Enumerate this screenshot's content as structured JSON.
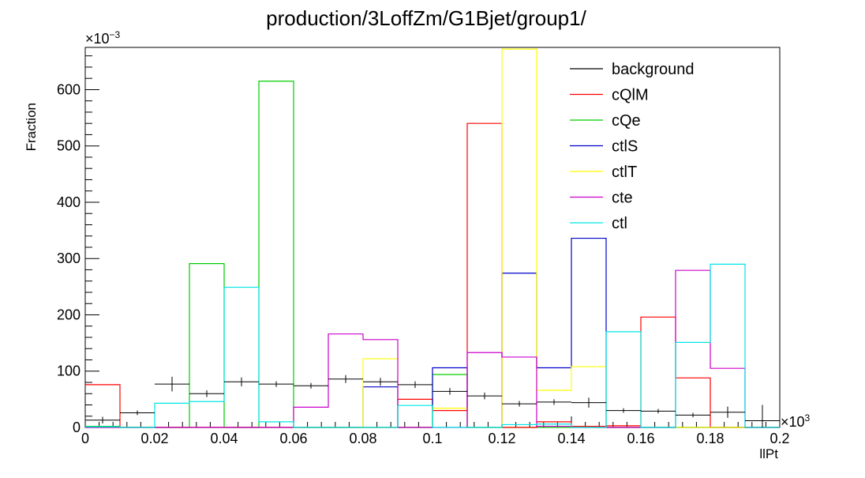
{
  "chart_data": {
    "type": "histogram",
    "title": "production/3LoffZm/G1Bjet/group1/",
    "xlabel": "llPt",
    "ylabel": "Fraction",
    "x_multiplier": "×10",
    "x_multiplier_exp": "3",
    "y_multiplier": "×10",
    "y_multiplier_exp": "−3",
    "xlim": [
      0,
      0.2
    ],
    "ylim": [
      0,
      0.675
    ],
    "x_tick_labels": [
      "0",
      "0.02",
      "0.04",
      "0.06",
      "0.08",
      "0.1",
      "0.12",
      "0.14",
      "0.16",
      "0.18",
      "0.2"
    ],
    "x_tick_values": [
      0,
      0.02,
      0.04,
      0.06,
      0.08,
      0.1,
      0.12,
      0.14,
      0.16,
      0.18,
      0.2
    ],
    "y_tick_labels": [
      "0",
      "100",
      "200",
      "300",
      "400",
      "500",
      "600"
    ],
    "y_tick_values": [
      0,
      0.1,
      0.2,
      0.3,
      0.4,
      0.5,
      0.6
    ],
    "bin_edges": [
      0,
      0.01,
      0.02,
      0.03,
      0.04,
      0.05,
      0.06,
      0.07,
      0.08,
      0.09,
      0.1,
      0.11,
      0.12,
      0.13,
      0.14,
      0.15,
      0.16,
      0.17,
      0.18,
      0.19,
      0.2
    ],
    "legend_position": "top-right",
    "series": [
      {
        "name": "background",
        "color": "#000000",
        "style": "errorbars",
        "values": [
          0.013,
          0.026,
          0.077,
          0.06,
          0.081,
          0.077,
          0.074,
          0.086,
          0.081,
          0.076,
          0.064,
          0.056,
          0.042,
          0.045,
          0.044,
          0.03,
          0.029,
          0.022,
          0.027,
          0.012
        ],
        "errors": [
          0.006,
          0.004,
          0.013,
          0.006,
          0.008,
          0.005,
          0.005,
          0.007,
          0.007,
          0.006,
          0.006,
          0.006,
          0.005,
          0.005,
          0.009,
          0.004,
          0.004,
          0.004,
          0.01,
          0.028
        ]
      },
      {
        "name": "cQlM",
        "color": "#ff0000",
        "style": "step",
        "values": [
          0.076,
          0,
          0,
          0,
          0,
          0,
          0,
          0,
          0,
          0.05,
          0.03,
          0.54,
          0,
          0.01,
          0.002,
          0.003,
          0.196,
          0.088,
          0,
          0
        ]
      },
      {
        "name": "cQe",
        "color": "#00cc00",
        "style": "step",
        "values": [
          0.002,
          0,
          0,
          0.291,
          0,
          0.615,
          0,
          0,
          0,
          0,
          0.094,
          0,
          0,
          0,
          0,
          0,
          0,
          0,
          0,
          0
        ]
      },
      {
        "name": "ctlS",
        "color": "#0000cc",
        "style": "step",
        "values": [
          0,
          0,
          0,
          0,
          0,
          0,
          0,
          0,
          0.072,
          0,
          0.106,
          0,
          0.274,
          0.106,
          0.336,
          0,
          0,
          0,
          0,
          0
        ]
      },
      {
        "name": "ctlT",
        "color": "#ffff00",
        "style": "step",
        "values": [
          0,
          0,
          0,
          0,
          0,
          0,
          0,
          0,
          0.122,
          0,
          0.034,
          0,
          0.672,
          0.066,
          0.108,
          0,
          0,
          0,
          0,
          0
        ]
      },
      {
        "name": "cte",
        "color": "#cc00cc",
        "style": "step",
        "values": [
          0,
          0,
          0,
          0,
          0,
          0,
          0.036,
          0.166,
          0.156,
          0,
          0,
          0.133,
          0.125,
          0.002,
          0,
          0,
          0,
          0.279,
          0.105,
          0
        ]
      },
      {
        "name": "ctl",
        "color": "#00e5e5",
        "style": "step",
        "values": [
          0.001,
          0,
          0.043,
          0.046,
          0.249,
          0.01,
          0,
          0,
          0,
          0.039,
          0,
          0,
          0.005,
          0.006,
          0,
          0.17,
          0,
          0.151,
          0.29,
          0
        ]
      }
    ]
  }
}
